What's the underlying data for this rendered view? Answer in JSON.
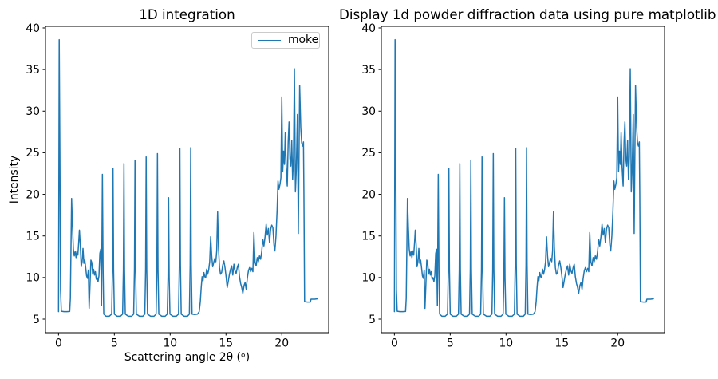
{
  "figure": {
    "background_color": "#ffffff",
    "line_color": "#1f77b4",
    "spine_color": "#000000"
  },
  "chart_data": [
    {
      "type": "line",
      "title": "1D integration",
      "xlabel": "Scattering angle 2θ (ᵒ)",
      "ylabel": "Intensity",
      "legend": {
        "position": "upper right",
        "entries": [
          "moke"
        ]
      },
      "grid": false,
      "xlim": [
        -1.17,
        24.2
      ],
      "ylim": [
        3.37,
        40.19
      ],
      "xticks": [
        0,
        5,
        10,
        15,
        20
      ],
      "yticks": [
        5,
        10,
        15,
        20,
        25,
        30,
        35,
        40
      ],
      "series": [
        {
          "name": "moke",
          "color": "#1f77b4",
          "points_ref": "diffraction_points"
        }
      ]
    },
    {
      "type": "line",
      "title": "Display 1d powder diffraction data using pure matplotlib",
      "xlabel": "",
      "ylabel": "",
      "legend": null,
      "grid": false,
      "xlim": [
        -1.17,
        24.2
      ],
      "ylim": [
        3.37,
        40.19
      ],
      "xticks": [
        0,
        5,
        10,
        15,
        20
      ],
      "yticks": [
        5,
        10,
        15,
        20,
        25,
        30,
        35,
        40
      ],
      "series": [
        {
          "name": "moke",
          "color": "#1f77b4",
          "points_ref": "diffraction_points"
        }
      ]
    }
  ],
  "diffraction_points": [
    [
      0.0,
      5.9
    ],
    [
      0.06,
      38.6
    ],
    [
      0.12,
      25.0
    ],
    [
      0.18,
      8.5
    ],
    [
      0.25,
      5.95
    ],
    [
      0.5,
      5.9
    ],
    [
      0.75,
      5.9
    ],
    [
      1.0,
      5.92
    ],
    [
      1.06,
      7.5
    ],
    [
      1.17,
      19.5
    ],
    [
      1.25,
      16.1
    ],
    [
      1.33,
      13.4
    ],
    [
      1.41,
      12.6
    ],
    [
      1.49,
      13.1
    ],
    [
      1.57,
      12.4
    ],
    [
      1.65,
      13.2
    ],
    [
      1.73,
      12.7
    ],
    [
      1.8,
      14.1
    ],
    [
      1.87,
      15.7
    ],
    [
      1.95,
      13.9
    ],
    [
      2.03,
      11.3
    ],
    [
      2.11,
      11.9
    ],
    [
      2.19,
      13.5
    ],
    [
      2.27,
      11.7
    ],
    [
      2.35,
      12.1
    ],
    [
      2.43,
      11.2
    ],
    [
      2.51,
      10.2
    ],
    [
      2.59,
      9.9
    ],
    [
      2.67,
      10.9
    ],
    [
      2.74,
      6.3
    ],
    [
      2.82,
      9.1
    ],
    [
      2.9,
      12.1
    ],
    [
      2.98,
      11.8
    ],
    [
      3.06,
      10.4
    ],
    [
      3.14,
      11.0
    ],
    [
      3.22,
      10.3
    ],
    [
      3.3,
      10.7
    ],
    [
      3.38,
      9.8
    ],
    [
      3.46,
      10.0
    ],
    [
      3.54,
      9.5
    ],
    [
      3.62,
      10.2
    ],
    [
      3.7,
      12.9
    ],
    [
      3.78,
      13.4
    ],
    [
      3.85,
      6.6
    ],
    [
      3.93,
      22.4
    ],
    [
      3.99,
      11.0
    ],
    [
      4.05,
      5.6
    ],
    [
      4.25,
      5.35
    ],
    [
      4.55,
      5.35
    ],
    [
      4.76,
      5.6
    ],
    [
      4.83,
      11.0
    ],
    [
      4.88,
      23.1
    ],
    [
      4.93,
      11.0
    ],
    [
      5.0,
      5.6
    ],
    [
      5.25,
      5.35
    ],
    [
      5.55,
      5.35
    ],
    [
      5.74,
      5.6
    ],
    [
      5.81,
      11.0
    ],
    [
      5.86,
      23.7
    ],
    [
      5.91,
      11.0
    ],
    [
      5.98,
      5.6
    ],
    [
      6.25,
      5.35
    ],
    [
      6.55,
      5.35
    ],
    [
      6.73,
      5.6
    ],
    [
      6.8,
      11.0
    ],
    [
      6.85,
      24.1
    ],
    [
      6.9,
      11.0
    ],
    [
      6.97,
      5.6
    ],
    [
      7.25,
      5.35
    ],
    [
      7.55,
      5.35
    ],
    [
      7.73,
      5.6
    ],
    [
      7.8,
      11.0
    ],
    [
      7.85,
      24.5
    ],
    [
      7.9,
      11.0
    ],
    [
      7.97,
      5.6
    ],
    [
      8.25,
      5.35
    ],
    [
      8.55,
      5.35
    ],
    [
      8.74,
      5.6
    ],
    [
      8.81,
      11.0
    ],
    [
      8.86,
      24.9
    ],
    [
      8.91,
      11.0
    ],
    [
      8.98,
      5.6
    ],
    [
      9.25,
      5.35
    ],
    [
      9.55,
      5.35
    ],
    [
      9.74,
      5.6
    ],
    [
      9.81,
      10.0
    ],
    [
      9.86,
      19.6
    ],
    [
      9.91,
      10.0
    ],
    [
      9.98,
      5.6
    ],
    [
      10.25,
      5.35
    ],
    [
      10.55,
      5.35
    ],
    [
      10.75,
      5.6
    ],
    [
      10.82,
      11.5
    ],
    [
      10.87,
      25.5
    ],
    [
      10.92,
      11.5
    ],
    [
      10.99,
      5.6
    ],
    [
      11.25,
      5.35
    ],
    [
      11.55,
      5.35
    ],
    [
      11.72,
      5.6
    ],
    [
      11.79,
      11.5
    ],
    [
      11.84,
      25.6
    ],
    [
      11.89,
      11.5
    ],
    [
      11.96,
      5.6
    ],
    [
      12.2,
      5.55
    ],
    [
      12.45,
      5.6
    ],
    [
      12.6,
      5.9
    ],
    [
      12.7,
      7.1
    ],
    [
      12.78,
      8.8
    ],
    [
      12.86,
      10.1
    ],
    [
      12.94,
      9.6
    ],
    [
      13.02,
      10.6
    ],
    [
      13.1,
      10.1
    ],
    [
      13.18,
      10.0
    ],
    [
      13.27,
      11.0
    ],
    [
      13.36,
      10.4
    ],
    [
      13.45,
      10.9
    ],
    [
      13.54,
      11.9
    ],
    [
      13.63,
      14.9
    ],
    [
      13.72,
      12.6
    ],
    [
      13.81,
      11.3
    ],
    [
      13.9,
      11.8
    ],
    [
      14.0,
      12.3
    ],
    [
      14.09,
      11.9
    ],
    [
      14.17,
      13.2
    ],
    [
      14.25,
      17.9
    ],
    [
      14.33,
      13.6
    ],
    [
      14.42,
      11.2
    ],
    [
      14.51,
      10.4
    ],
    [
      14.61,
      10.6
    ],
    [
      14.71,
      11.5
    ],
    [
      14.81,
      12.0
    ],
    [
      14.91,
      11.2
    ],
    [
      15.01,
      10.1
    ],
    [
      15.11,
      8.8
    ],
    [
      15.21,
      9.6
    ],
    [
      15.31,
      10.4
    ],
    [
      15.41,
      11.0
    ],
    [
      15.51,
      11.4
    ],
    [
      15.61,
      10.3
    ],
    [
      15.71,
      11.6
    ],
    [
      15.81,
      10.8
    ],
    [
      15.91,
      10.5
    ],
    [
      16.01,
      11.2
    ],
    [
      16.11,
      11.6
    ],
    [
      16.21,
      10.1
    ],
    [
      16.31,
      9.3
    ],
    [
      16.41,
      8.8
    ],
    [
      16.51,
      8.1
    ],
    [
      16.61,
      9.0
    ],
    [
      16.71,
      9.4
    ],
    [
      16.81,
      8.6
    ],
    [
      16.91,
      9.9
    ],
    [
      17.01,
      10.8
    ],
    [
      17.11,
      11.2
    ],
    [
      17.21,
      10.7
    ],
    [
      17.31,
      11.1
    ],
    [
      17.41,
      10.7
    ],
    [
      17.5,
      15.4
    ],
    [
      17.6,
      11.9
    ],
    [
      17.7,
      11.4
    ],
    [
      17.8,
      12.4
    ],
    [
      17.9,
      11.9
    ],
    [
      18.0,
      12.6
    ],
    [
      18.1,
      12.2
    ],
    [
      18.2,
      13.1
    ],
    [
      18.3,
      14.6
    ],
    [
      18.4,
      13.8
    ],
    [
      18.5,
      14.9
    ],
    [
      18.6,
      16.4
    ],
    [
      18.7,
      15.1
    ],
    [
      18.8,
      15.9
    ],
    [
      18.9,
      14.2
    ],
    [
      19.0,
      15.8
    ],
    [
      19.1,
      16.3
    ],
    [
      19.2,
      16.0
    ],
    [
      19.3,
      13.9
    ],
    [
      19.38,
      13.2
    ],
    [
      19.48,
      15.0
    ],
    [
      19.58,
      18.1
    ],
    [
      19.66,
      21.6
    ],
    [
      19.74,
      20.6
    ],
    [
      19.84,
      21.2
    ],
    [
      19.92,
      22.0
    ],
    [
      20.0,
      31.7
    ],
    [
      20.08,
      22.7
    ],
    [
      20.16,
      25.2
    ],
    [
      20.24,
      23.6
    ],
    [
      20.31,
      27.4
    ],
    [
      20.4,
      23.2
    ],
    [
      20.49,
      21.0
    ],
    [
      20.57,
      26.2
    ],
    [
      20.65,
      28.7
    ],
    [
      20.73,
      24.3
    ],
    [
      20.81,
      23.4
    ],
    [
      20.89,
      26.5
    ],
    [
      20.97,
      21.8
    ],
    [
      21.05,
      24.5
    ],
    [
      21.13,
      35.1
    ],
    [
      21.22,
      20.3
    ],
    [
      21.3,
      23.0
    ],
    [
      21.4,
      29.6
    ],
    [
      21.48,
      15.3
    ],
    [
      21.6,
      33.1
    ],
    [
      21.7,
      28.0
    ],
    [
      21.78,
      26.2
    ],
    [
      21.86,
      25.8
    ],
    [
      21.94,
      26.3
    ],
    [
      21.98,
      20.2
    ],
    [
      22.04,
      7.1
    ],
    [
      22.3,
      7.05
    ],
    [
      22.55,
      7.05
    ],
    [
      22.62,
      7.4
    ],
    [
      22.95,
      7.4
    ],
    [
      23.2,
      7.45
    ]
  ]
}
